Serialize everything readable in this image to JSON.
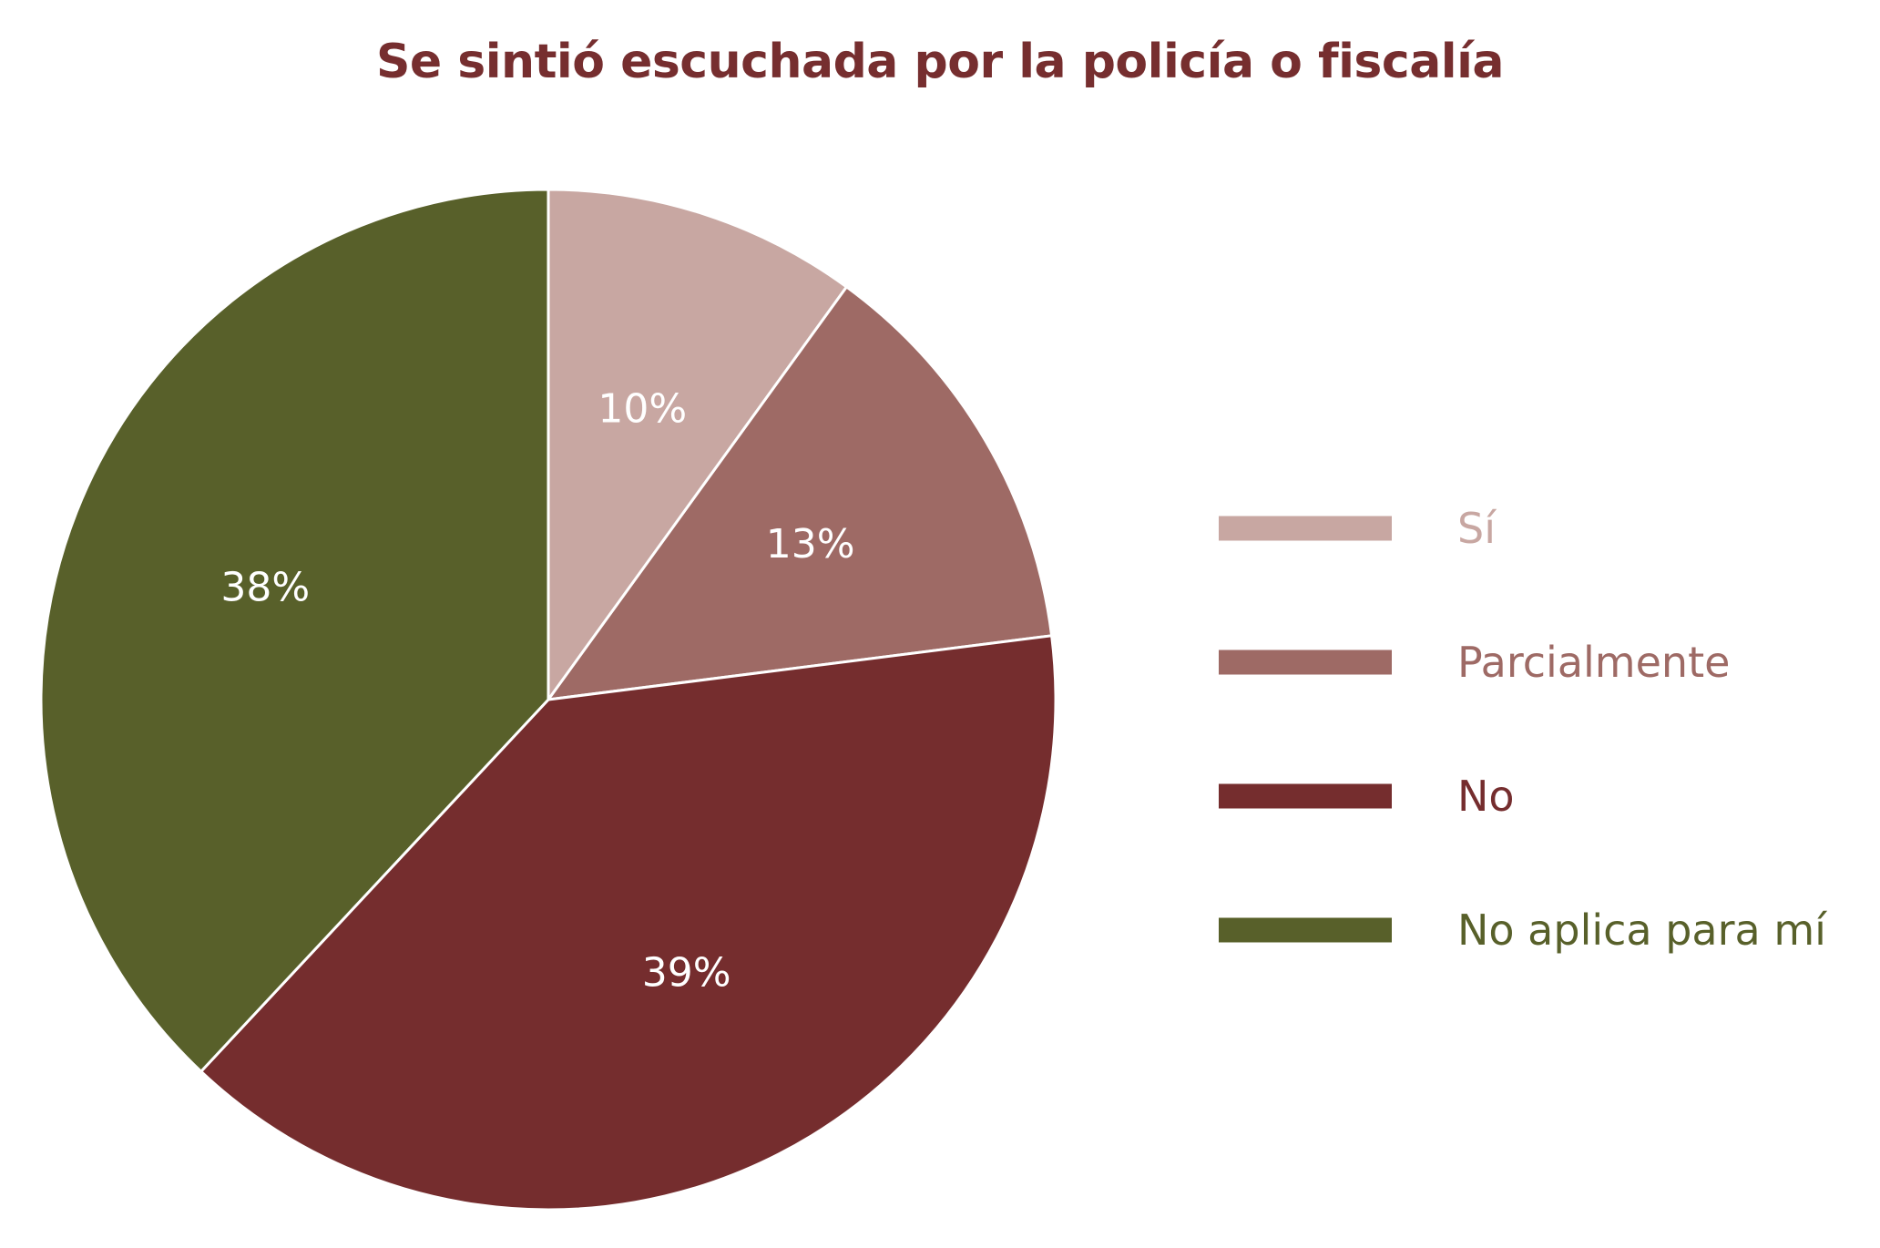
{
  "chart_data": {
    "type": "pie",
    "title": "Se sintió escuchada por la policía o fiscalía",
    "slices": [
      {
        "label": "Sí",
        "value": 10,
        "value_label": "10%",
        "color": "#c8a7a2"
      },
      {
        "label": "Parcialmente",
        "value": 13,
        "value_label": "13%",
        "color": "#9e6a65"
      },
      {
        "label": "No",
        "value": 39,
        "value_label": "39%",
        "color": "#752d2e"
      },
      {
        "label": "No aplica para mí",
        "value": 38,
        "value_label": "38%",
        "color": "#58602a"
      }
    ],
    "start": "top",
    "direction": "clockwise",
    "legend_position": "right"
  }
}
